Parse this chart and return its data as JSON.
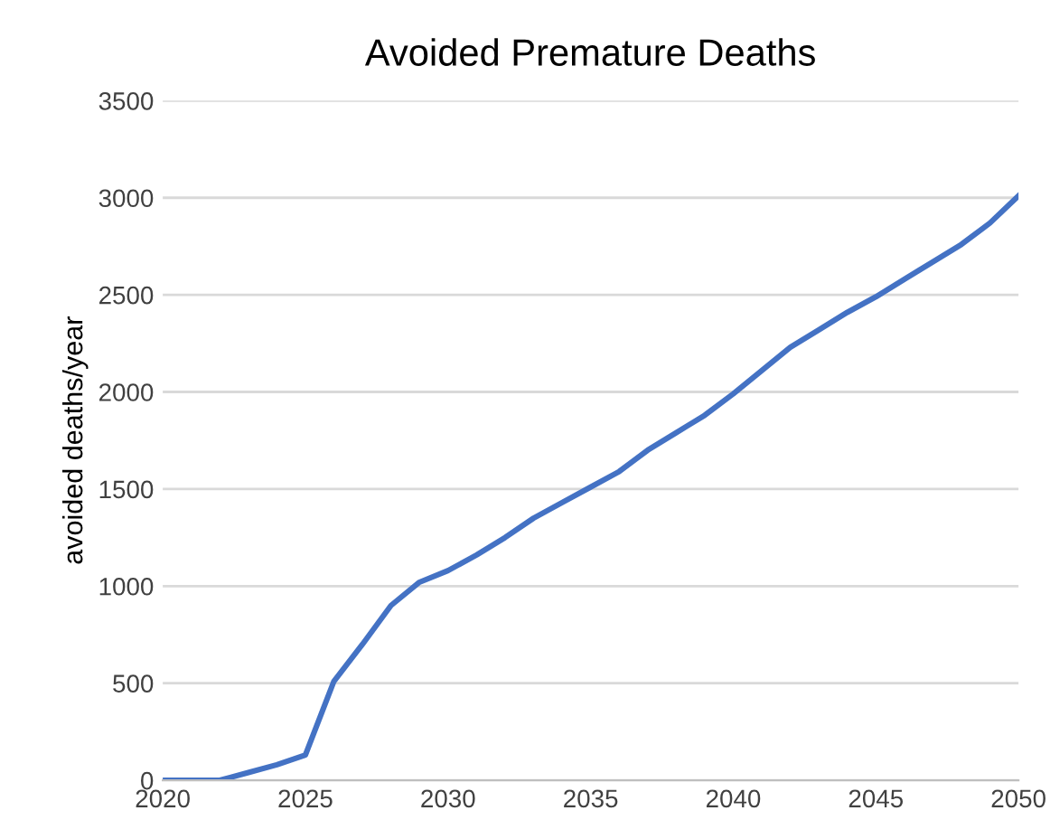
{
  "chart_data": {
    "type": "line",
    "title": "Avoided Premature Deaths",
    "ylabel": "avoided deaths/year",
    "x": [
      2020,
      2021,
      2022,
      2023,
      2024,
      2025,
      2026,
      2027,
      2028,
      2029,
      2030,
      2031,
      2032,
      2033,
      2034,
      2035,
      2036,
      2037,
      2038,
      2039,
      2040,
      2041,
      2042,
      2043,
      2044,
      2045,
      2046,
      2047,
      2048,
      2049,
      2050
    ],
    "series": [
      {
        "color": "#4472c4",
        "values": [
          0,
          0,
          0,
          40,
          80,
          130,
          510,
          700,
          900,
          1020,
          1080,
          1160,
          1250,
          1350,
          1430,
          1510,
          1590,
          1700,
          1790,
          1880,
          1990,
          2110,
          2230,
          2320,
          2410,
          2490,
          2580,
          2670,
          2760,
          2870,
          3010
        ]
      }
    ],
    "xlim": [
      2020,
      2050
    ],
    "xticks": [
      2020,
      2025,
      2030,
      2035,
      2040,
      2045,
      2050
    ],
    "ylim": [
      0,
      3500
    ],
    "yticks": [
      0,
      500,
      1000,
      1500,
      2000,
      2500,
      3000,
      3500
    ],
    "grid": "y",
    "legend": false,
    "marker": "none",
    "line_style": "solid"
  }
}
